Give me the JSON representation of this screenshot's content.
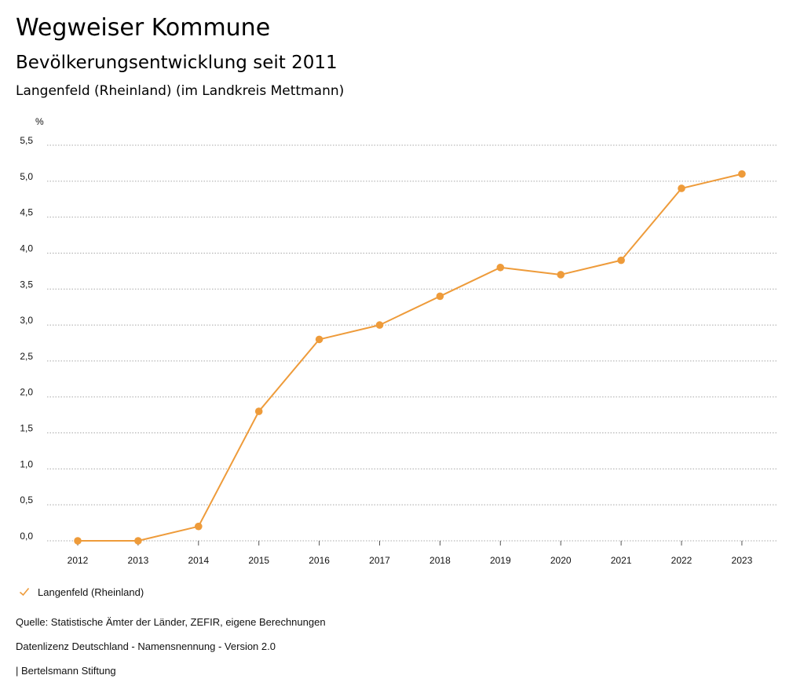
{
  "header": {
    "title": "Wegweiser Kommune",
    "subtitle": "Bevölkerungsentwicklung seit 2011",
    "region": "Langenfeld (Rheinland) (im Landkreis Mettmann)"
  },
  "legend": {
    "label": "Langenfeld (Rheinland)"
  },
  "footer": {
    "source": "Quelle: Statistische Ämter der Länder, ZEFIR, eigene Berechnungen",
    "license": "Datenlizenz Deutschland - Namensnennung - Version 2.0",
    "publisher": "| Bertelsmann Stiftung"
  },
  "colors": {
    "series": "#ee9b3a",
    "grid": "#a8a8a8",
    "axis": "#555555",
    "text": "#111111"
  },
  "chart_data": {
    "type": "line",
    "title": "Bevölkerungsentwicklung seit 2011",
    "subtitle": "Langenfeld (Rheinland) (im Landkreis Mettmann)",
    "xlabel": "",
    "ylabel": "%",
    "ylim": [
      0,
      5.5
    ],
    "yticks": [
      "0,0",
      "0,5",
      "1,0",
      "1,5",
      "2,0",
      "2,5",
      "3,0",
      "3,5",
      "4,0",
      "4,5",
      "5,0",
      "5,5"
    ],
    "grid": true,
    "legend_position": "bottom-left",
    "categories": [
      "2012",
      "2013",
      "2014",
      "2015",
      "2016",
      "2017",
      "2018",
      "2019",
      "2020",
      "2021",
      "2022",
      "2023"
    ],
    "series": [
      {
        "name": "Langenfeld (Rheinland)",
        "values": [
          -0.0,
          0.0,
          0.2,
          1.8,
          2.8,
          3.0,
          3.4,
          3.8,
          3.7,
          3.9,
          4.9,
          5.1
        ]
      }
    ]
  }
}
